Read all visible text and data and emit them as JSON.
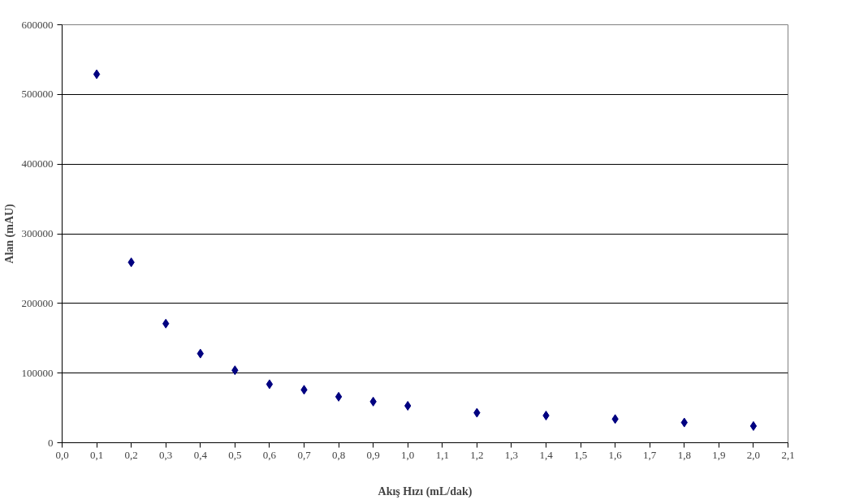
{
  "chart_data": {
    "type": "scatter",
    "xlabel": "Akış Hızı (mL/dak)",
    "ylabel": "Alan (mAU)",
    "x": [
      0.1,
      0.2,
      0.3,
      0.4,
      0.5,
      0.6,
      0.7,
      0.8,
      0.9,
      1.0,
      1.2,
      1.4,
      1.6,
      1.8,
      2.0
    ],
    "series": [
      {
        "color": "#000080",
        "values": [
          529000,
          259000,
          171000,
          128000,
          104000,
          84000,
          76000,
          66000,
          59000,
          53000,
          43000,
          39000,
          34000,
          29000,
          24000
        ]
      }
    ],
    "marker": "diamond",
    "grid": "y",
    "xlim": [
      0,
      2.1
    ],
    "xticks": [
      {
        "value": 0,
        "label": "0,0"
      },
      {
        "value": 0.1,
        "label": "0,1"
      },
      {
        "value": 0.2,
        "label": "0,2"
      },
      {
        "value": 0.3,
        "label": "0,3"
      },
      {
        "value": 0.4,
        "label": "0,4"
      },
      {
        "value": 0.5,
        "label": "0,5"
      },
      {
        "value": 0.6,
        "label": "0,6"
      },
      {
        "value": 0.7,
        "label": "0,7"
      },
      {
        "value": 0.8,
        "label": "0,8"
      },
      {
        "value": 0.9,
        "label": "0,9"
      },
      {
        "value": 1.0,
        "label": "1,0"
      },
      {
        "value": 1.1,
        "label": "1,1"
      },
      {
        "value": 1.2,
        "label": "1,2"
      },
      {
        "value": 1.3,
        "label": "1,3"
      },
      {
        "value": 1.4,
        "label": "1,4"
      },
      {
        "value": 1.5,
        "label": "1,5"
      },
      {
        "value": 1.6,
        "label": "1,6"
      },
      {
        "value": 1.7,
        "label": "1,7"
      },
      {
        "value": 1.8,
        "label": "1,8"
      },
      {
        "value": 1.9,
        "label": "1,9"
      },
      {
        "value": 2.0,
        "label": "2,0"
      },
      {
        "value": 2.1,
        "label": "2,1"
      }
    ],
    "ylim": [
      0,
      600000
    ],
    "yticks": [
      0,
      100000,
      200000,
      300000,
      400000,
      500000,
      600000
    ]
  }
}
